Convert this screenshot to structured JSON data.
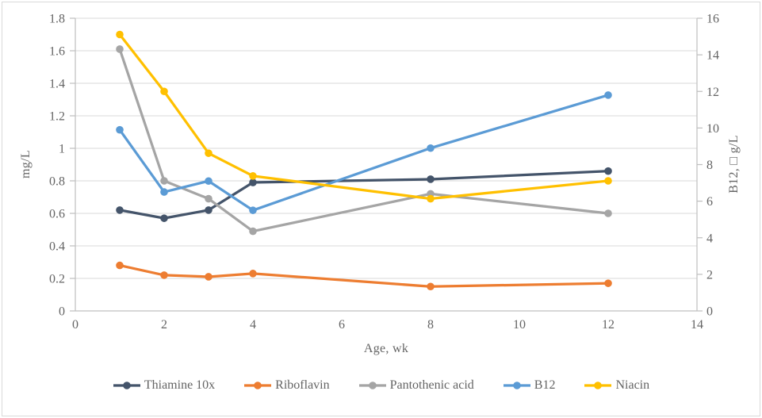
{
  "chart_data": {
    "type": "line",
    "title": "",
    "xlabel": "Age, wk",
    "ylabel_left": "mg/L",
    "ylabel_right": "B12, □ g/L",
    "x": [
      1,
      2,
      3,
      4,
      8,
      12
    ],
    "xlim": [
      0,
      14
    ],
    "x_tick_labels": [
      "0",
      "2",
      "4",
      "6",
      "8",
      "10",
      "12",
      "14"
    ],
    "ylim_left": [
      0,
      1.8
    ],
    "y_tick_labels_left": [
      "0",
      "0.2",
      "0.4",
      "0.6",
      "0.8",
      "1",
      "1.2",
      "1.4",
      "1.6",
      "1.8"
    ],
    "ylim_right": [
      0,
      16
    ],
    "y_tick_labels_right": [
      "0",
      "2",
      "4",
      "6",
      "8",
      "10",
      "12",
      "14",
      "16"
    ],
    "grid": true,
    "legend_position": "bottom",
    "series": [
      {
        "name": "Thiamine 10x",
        "color": "#44546A",
        "axis": "left",
        "values": [
          0.62,
          0.57,
          0.62,
          0.79,
          0.81,
          0.86
        ]
      },
      {
        "name": "Riboflavin",
        "color": "#ED7D31",
        "axis": "left",
        "values": [
          0.28,
          0.22,
          0.21,
          0.23,
          0.15,
          0.17
        ]
      },
      {
        "name": "Pantothenic acid",
        "color": "#A5A5A5",
        "axis": "left",
        "values": [
          1.61,
          0.8,
          0.69,
          0.49,
          0.72,
          0.6
        ]
      },
      {
        "name": "B12",
        "color": "#5B9BD5",
        "axis": "right",
        "values": [
          9.9,
          6.5,
          7.1,
          5.5,
          8.9,
          11.8
        ]
      },
      {
        "name": "Niacin",
        "color": "#FFC000",
        "axis": "left",
        "values": [
          1.7,
          1.35,
          0.97,
          0.83,
          0.69,
          0.8
        ]
      }
    ]
  },
  "styles": {
    "axis_color": "#BFBFBF",
    "grid_color": "#D9D9D9",
    "text_color": "#646464",
    "background": "#FFFFFF",
    "border_color": "#D9D9D9"
  }
}
